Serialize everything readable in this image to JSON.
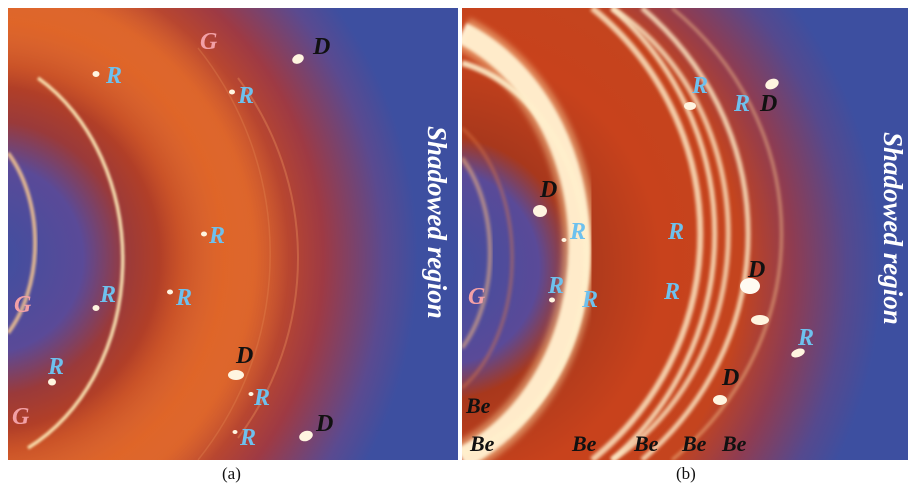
{
  "panels": [
    {
      "id": "a",
      "caption": "(a)",
      "shadow_label": "Shadowed region",
      "labels": [
        {
          "t": "G",
          "k": "g"
        },
        {
          "t": "D",
          "k": "d"
        },
        {
          "t": "R",
          "k": "r"
        },
        {
          "t": "R",
          "k": "r"
        },
        {
          "t": "R",
          "k": "r"
        },
        {
          "t": "R",
          "k": "r"
        },
        {
          "t": "R",
          "k": "r"
        },
        {
          "t": "G",
          "k": "g"
        },
        {
          "t": "R",
          "k": "r"
        },
        {
          "t": "D",
          "k": "d"
        },
        {
          "t": "R",
          "k": "r"
        },
        {
          "t": "G",
          "k": "g"
        },
        {
          "t": "R",
          "k": "r"
        },
        {
          "t": "D",
          "k": "d"
        }
      ]
    },
    {
      "id": "b",
      "caption": "(b)",
      "shadow_label": "Shadowed region",
      "labels": [
        {
          "t": "R",
          "k": "r"
        },
        {
          "t": "R",
          "k": "r"
        },
        {
          "t": "D",
          "k": "d"
        },
        {
          "t": "D",
          "k": "d"
        },
        {
          "t": "R",
          "k": "r"
        },
        {
          "t": "R",
          "k": "r"
        },
        {
          "t": "D",
          "k": "d"
        },
        {
          "t": "G",
          "k": "g"
        },
        {
          "t": "R",
          "k": "r"
        },
        {
          "t": "R",
          "k": "r"
        },
        {
          "t": "R",
          "k": "r"
        },
        {
          "t": "R",
          "k": "r"
        },
        {
          "t": "D",
          "k": "d"
        },
        {
          "t": "Be",
          "k": "be"
        },
        {
          "t": "Be",
          "k": "be"
        },
        {
          "t": "Be",
          "k": "be"
        },
        {
          "t": "Be",
          "k": "be"
        },
        {
          "t": "Be",
          "k": "be"
        },
        {
          "t": "Be",
          "k": "be"
        }
      ]
    }
  ],
  "colors": {
    "background_blue": "#3d4fa0",
    "intensity_red": "#b3321c",
    "ring_bright": "#fff2c8",
    "label_R": "#6ec1ee",
    "label_G": "#f2a0a6",
    "label_D": "#111111"
  }
}
